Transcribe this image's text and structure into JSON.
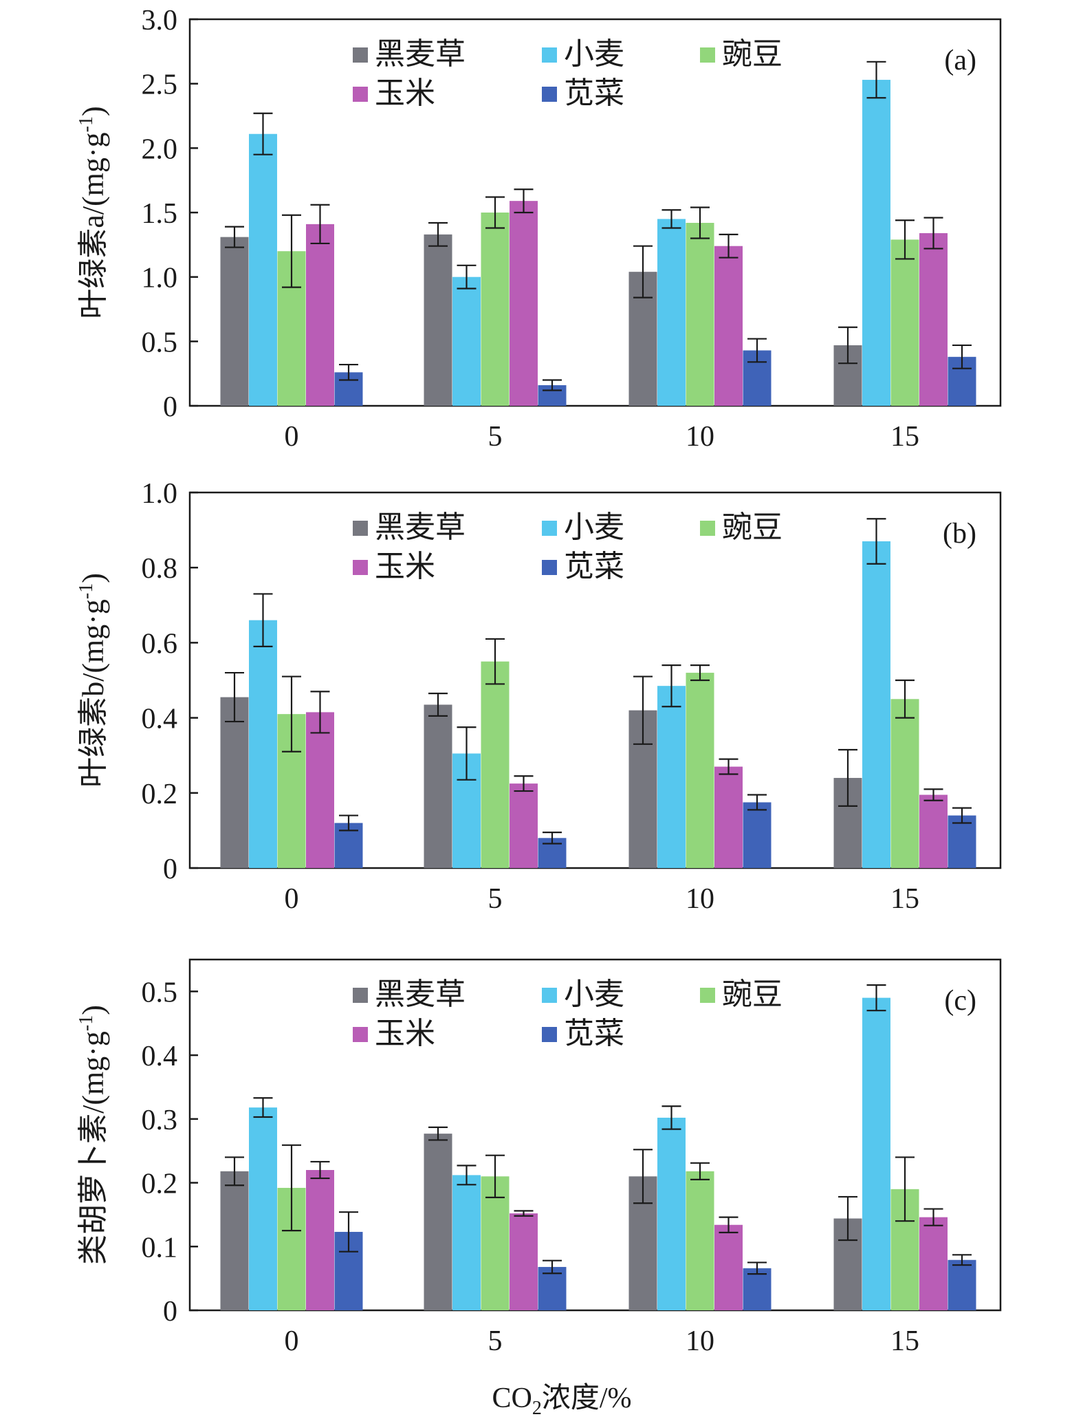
{
  "colors": {
    "黑麦草": "#76777f",
    "小麦": "#56c7ee",
    "豌豆": "#92d67b",
    "玉米": "#b95db6",
    "苋菜": "#3f63b8"
  },
  "xlabel": "CO2浓度/%",
  "xlabel_parts": {
    "main": "CO",
    "sub": "2",
    "rest": "浓度/%"
  },
  "chart_data": [
    {
      "type": "bar",
      "panel_label": "(a)",
      "ylabel": "叶绿素a/(mg·g⁻¹)",
      "ylabel_main": "叶绿素a/(mg·g",
      "ylabel_sup": "-1",
      "ylabel_end": ")",
      "ylim": [
        0,
        3.0
      ],
      "yticks": [
        "0",
        "0.5",
        "1.0",
        "1.5",
        "2.0",
        "2.5",
        "3.0"
      ],
      "ytick_values": [
        0,
        0.5,
        1.0,
        1.5,
        2.0,
        2.5,
        3.0
      ],
      "categories": [
        "0",
        "5",
        "10",
        "15"
      ],
      "legend": {
        "placement": "top-center",
        "order": [
          "黑麦草",
          "小麦",
          "豌豆",
          "玉米",
          "苋菜"
        ]
      },
      "series": [
        {
          "name": "黑麦草",
          "values": [
            1.31,
            1.33,
            1.04,
            0.47
          ],
          "errors": [
            0.08,
            0.09,
            0.2,
            0.14
          ]
        },
        {
          "name": "小麦",
          "values": [
            2.11,
            1.0,
            1.45,
            2.53
          ],
          "errors": [
            0.16,
            0.09,
            0.07,
            0.14
          ]
        },
        {
          "name": "豌豆",
          "values": [
            1.2,
            1.5,
            1.42,
            1.29
          ],
          "errors": [
            0.28,
            0.12,
            0.12,
            0.15
          ]
        },
        {
          "name": "玉米",
          "values": [
            1.41,
            1.59,
            1.24,
            1.34
          ],
          "errors": [
            0.15,
            0.09,
            0.09,
            0.12
          ]
        },
        {
          "name": "苋菜",
          "values": [
            0.26,
            0.16,
            0.43,
            0.38
          ],
          "errors": [
            0.06,
            0.04,
            0.09,
            0.09
          ]
        }
      ]
    },
    {
      "type": "bar",
      "panel_label": "(b)",
      "ylabel": "叶绿素b/(mg·g⁻¹)",
      "ylabel_main": "叶绿素b/(mg·g",
      "ylabel_sup": "-1",
      "ylabel_end": ")",
      "ylim": [
        0,
        1.0
      ],
      "yticks": [
        "0",
        "0.2",
        "0.4",
        "0.6",
        "0.8",
        "1.0"
      ],
      "ytick_values": [
        0,
        0.2,
        0.4,
        0.6,
        0.8,
        1.0
      ],
      "categories": [
        "0",
        "5",
        "10",
        "15"
      ],
      "legend": {
        "placement": "top-center",
        "order": [
          "黑麦草",
          "小麦",
          "豌豆",
          "玉米",
          "苋菜"
        ]
      },
      "series": [
        {
          "name": "黑麦草",
          "values": [
            0.455,
            0.435,
            0.42,
            0.24
          ],
          "errors": [
            0.065,
            0.03,
            0.09,
            0.075
          ]
        },
        {
          "name": "小麦",
          "values": [
            0.66,
            0.305,
            0.485,
            0.87
          ],
          "errors": [
            0.07,
            0.07,
            0.055,
            0.06
          ]
        },
        {
          "name": "豌豆",
          "values": [
            0.41,
            0.55,
            0.52,
            0.45
          ],
          "errors": [
            0.1,
            0.06,
            0.02,
            0.05
          ]
        },
        {
          "name": "玉米",
          "values": [
            0.415,
            0.225,
            0.27,
            0.195
          ],
          "errors": [
            0.055,
            0.02,
            0.02,
            0.015
          ]
        },
        {
          "name": "苋菜",
          "values": [
            0.12,
            0.08,
            0.175,
            0.14
          ],
          "errors": [
            0.02,
            0.015,
            0.02,
            0.02
          ]
        }
      ]
    },
    {
      "type": "bar",
      "panel_label": "(c)",
      "ylabel": "类胡萝卜素/(mg·g⁻¹)",
      "ylabel_main": "类胡萝卜素/(mg·g",
      "ylabel_sup": "-1",
      "ylabel_end": ")",
      "ylim": [
        0,
        0.55
      ],
      "yticks": [
        "0",
        "0.1",
        "0.2",
        "0.3",
        "0.4",
        "0.5"
      ],
      "ytick_values": [
        0,
        0.1,
        0.2,
        0.3,
        0.4,
        0.5
      ],
      "categories": [
        "0",
        "5",
        "10",
        "15"
      ],
      "legend": {
        "placement": "top-center",
        "order": [
          "黑麦草",
          "小麦",
          "豌豆",
          "玉米",
          "苋菜"
        ]
      },
      "series": [
        {
          "name": "黑麦草",
          "values": [
            0.218,
            0.277,
            0.21,
            0.144
          ],
          "errors": [
            0.022,
            0.01,
            0.042,
            0.034
          ]
        },
        {
          "name": "小麦",
          "values": [
            0.318,
            0.212,
            0.302,
            0.49
          ],
          "errors": [
            0.015,
            0.015,
            0.018,
            0.02
          ]
        },
        {
          "name": "豌豆",
          "values": [
            0.192,
            0.21,
            0.218,
            0.19
          ],
          "errors": [
            0.067,
            0.033,
            0.013,
            0.05
          ]
        },
        {
          "name": "玉米",
          "values": [
            0.22,
            0.152,
            0.134,
            0.146
          ],
          "errors": [
            0.013,
            0.004,
            0.012,
            0.013
          ]
        },
        {
          "name": "苋菜",
          "values": [
            0.123,
            0.068,
            0.066,
            0.079
          ],
          "errors": [
            0.031,
            0.01,
            0.009,
            0.008
          ]
        }
      ]
    }
  ]
}
